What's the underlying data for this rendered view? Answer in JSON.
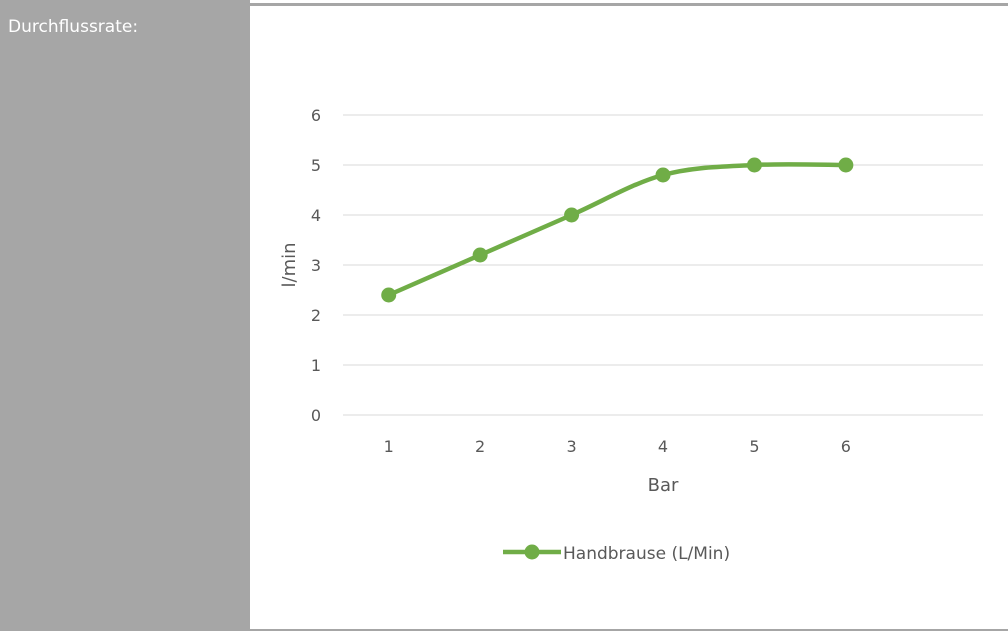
{
  "panel": {
    "label": "Durchflussrate:"
  },
  "colors": {
    "panel_bg": "#a6a6a6",
    "series_line": "#70ad47",
    "gridline": "#d9d9d9",
    "axis_text": "#595959"
  },
  "chart_data": {
    "type": "line",
    "title": "",
    "xlabel": "Bar",
    "ylabel": "l/min",
    "x": [
      1,
      2,
      3,
      4,
      5,
      6
    ],
    "xlim": [
      0.5,
      7.5
    ],
    "ylim": [
      0,
      6
    ],
    "yticks": [
      0,
      1,
      2,
      3,
      4,
      5,
      6
    ],
    "xticks": [
      1,
      2,
      3,
      4,
      5,
      6
    ],
    "grid": true,
    "smooth": true,
    "legend_position": "bottom",
    "series": [
      {
        "name": "Handbrause (L/Min)",
        "values": [
          2.4,
          3.2,
          4.0,
          4.8,
          5.0,
          5.0
        ]
      }
    ]
  }
}
